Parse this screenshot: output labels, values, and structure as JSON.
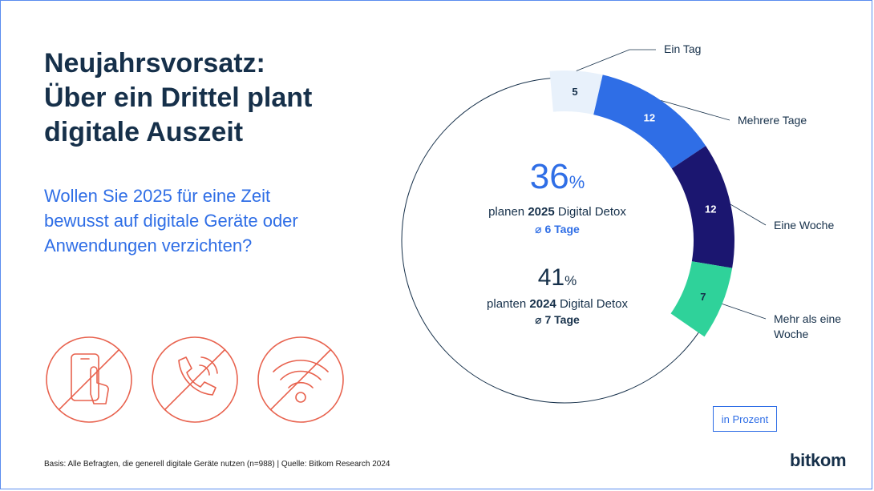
{
  "title_lines": [
    "Neujahrsvorsatz:",
    "Über ein Drittel plant",
    "digitale Auszeit"
  ],
  "question_lines": [
    "Wollen Sie 2025 für eine Zeit",
    "bewusst auf digitale Geräte oder",
    "Anwendungen verzichten?"
  ],
  "center": {
    "value_2025": "36",
    "pct": "%",
    "label_2025_pre": "planen ",
    "label_2025_year": "2025",
    "label_2025_post": " Digital Detox",
    "avg_2025": "⌀ 6 Tage",
    "value_2024": "41",
    "label_2024_pre": "planten ",
    "label_2024_year": "2024",
    "label_2024_post": " Digital Detox",
    "avg_2024": "⌀ 7 Tage"
  },
  "unit_label": "in Prozent",
  "footnote": "Basis: Alle Befragten, die generell digitale Geräte nutzen (n=988) | Quelle: Bitkom Research 2024",
  "logo": "bitkom",
  "icons": [
    "no-smartphone-icon",
    "no-phone-call-icon",
    "no-wifi-icon"
  ],
  "colors": {
    "title": "#16304a",
    "accent": "#2f6ee6",
    "icon_red": "#e8624e",
    "seg_ein_tag": "#e8f1fb",
    "seg_mehrere_tage": "#2f6ee6",
    "seg_eine_woche": "#1b1670",
    "seg_mehr_als_eine_woche": "#2fd29a"
  },
  "chart_data": {
    "type": "donut",
    "unit": "in Prozent",
    "categories": [
      "Ein Tag",
      "Mehrere Tage",
      "Eine Woche",
      "Mehr als eine Woche"
    ],
    "display_labels": [
      [
        "Ein Tag"
      ],
      [
        "Mehrere Tage"
      ],
      [
        "Eine Woche"
      ],
      [
        "Mehr als eine",
        "Woche"
      ]
    ],
    "values": [
      5,
      12,
      12,
      7
    ],
    "colors": [
      "#e8f1fb",
      "#2f6ee6",
      "#1b1670",
      "#2fd29a"
    ],
    "label_colors": [
      "#16304a",
      "#ffffff",
      "#ffffff",
      "#16304a"
    ],
    "total_percent": 100
  }
}
